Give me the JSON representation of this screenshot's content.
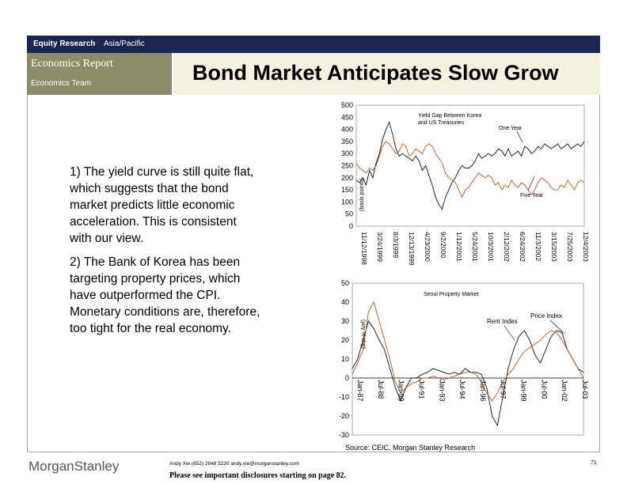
{
  "header": {
    "division": "Equity Research",
    "region": "Asia/Pacific",
    "report_type": "Economics Report",
    "team": "Economics Team",
    "title": "Bond Market Anticipates Slow Grow"
  },
  "bullets": {
    "b1": {
      "first": "1) The yield curve is still quite flat,",
      "lines": [
        "which suggests that the bond",
        "market predicts little economic",
        "acceleration.  This is consistent",
        "with our view."
      ]
    },
    "b2": {
      "first": "2) The Bank of Korea has been",
      "lines": [
        "targeting property prices, which",
        "have outperformed the CPI.",
        "Monetary conditions are, therefore,",
        "too tight for the real economy."
      ]
    }
  },
  "footer": {
    "source": "Source: CEIC, Morgan Stanley Research",
    "logo_part1": "Morgan",
    "logo_part2": "Stanley",
    "contact": "Andy Xie (852) 2848 5220  andy.xie@morganstanley.com",
    "disclosure": "Please see important disclosures starting on page 82.",
    "page": "71"
  },
  "chart_data": [
    {
      "type": "line",
      "title": "Yield Gap Between Korea and US Treasuries",
      "title_lines": [
        "Yield Gap Between Korea",
        "and US Treasuries"
      ],
      "ylabel": "(basis points)",
      "ylim": [
        0,
        500
      ],
      "yticks": [
        0,
        50,
        100,
        150,
        200,
        250,
        300,
        350,
        400,
        450,
        500
      ],
      "xticks": [
        "11/12/1998",
        "3/24/1999",
        "8/3/1999",
        "12/13/1999",
        "4/23/2000",
        "9/2/2000",
        "1/12/2001",
        "5/24/2001",
        "10/3/2001",
        "2/12/2002",
        "6/24/2002",
        "11/3/2002",
        "3/15/2003",
        "7/25/2003",
        "12/4/2003"
      ],
      "series": [
        {
          "name": "One Year",
          "color": "#111111",
          "values": [
            190,
            180,
            200,
            170,
            230,
            200,
            260,
            300,
            360,
            400,
            430,
            380,
            320,
            290,
            300,
            290,
            280,
            270,
            290,
            270,
            230,
            250,
            210,
            170,
            120,
            90,
            70,
            120,
            150,
            180,
            200,
            230,
            250,
            240,
            240,
            250,
            270,
            300,
            280,
            290,
            300,
            290,
            300,
            320,
            310,
            290,
            320,
            290,
            300,
            310,
            290,
            330,
            320,
            300,
            310,
            330,
            320,
            340,
            330,
            320,
            330,
            340,
            320,
            330,
            340,
            320,
            330,
            340,
            330,
            350
          ]
        },
        {
          "name": "Five Year",
          "color": "#b5581f",
          "values": [
            260,
            240,
            230,
            220,
            240,
            230,
            250,
            290,
            330,
            350,
            340,
            320,
            300,
            310,
            340,
            330,
            290,
            300,
            320,
            310,
            300,
            330,
            340,
            330,
            300,
            280,
            260,
            220,
            200,
            190,
            180,
            150,
            120,
            150,
            160,
            180,
            200,
            220,
            210,
            200,
            210,
            200,
            170,
            180,
            150,
            170,
            160,
            190,
            170,
            160,
            180,
            170,
            150,
            130,
            150,
            180,
            200,
            190,
            180,
            160,
            150,
            150,
            170,
            160,
            190,
            170,
            150,
            180,
            190,
            180
          ]
        }
      ]
    },
    {
      "type": "line",
      "title": "Seoul Property Market",
      "ylabel": "(yoy % chg)",
      "ylim": [
        -30,
        50
      ],
      "yticks": [
        -30,
        -20,
        -10,
        0,
        10,
        20,
        30,
        40,
        50
      ],
      "xticks": [
        "Jan-87",
        "Jul-88",
        "Jan-90",
        "Jul-91",
        "Jan-93",
        "Jul-94",
        "Jan-96",
        "Jul-97",
        "Jan-99",
        "Jul-00",
        "Jan-02",
        "Jul-03"
      ],
      "series": [
        {
          "name": "Rent Index",
          "color": "#111111",
          "values": [
            5,
            10,
            20,
            30,
            26,
            20,
            15,
            5,
            -5,
            -12,
            -5,
            0,
            0,
            2,
            3,
            5,
            4,
            3,
            2,
            3,
            2,
            5,
            3,
            3,
            2,
            -5,
            -20,
            -25,
            -10,
            5,
            15,
            22,
            25,
            20,
            12,
            8,
            15,
            22,
            25,
            24,
            15,
            10,
            5,
            3
          ]
        },
        {
          "name": "Price Index",
          "color": "#b5581f",
          "values": [
            2,
            8,
            15,
            35,
            40,
            30,
            20,
            10,
            -2,
            -8,
            -5,
            -3,
            -2,
            0,
            0,
            1,
            0,
            -1,
            0,
            1,
            2,
            3,
            3,
            2,
            -2,
            -8,
            -12,
            -8,
            -2,
            2,
            5,
            10,
            14,
            16,
            18,
            20,
            23,
            25,
            24,
            20,
            15,
            10,
            5,
            0
          ]
        }
      ]
    }
  ]
}
